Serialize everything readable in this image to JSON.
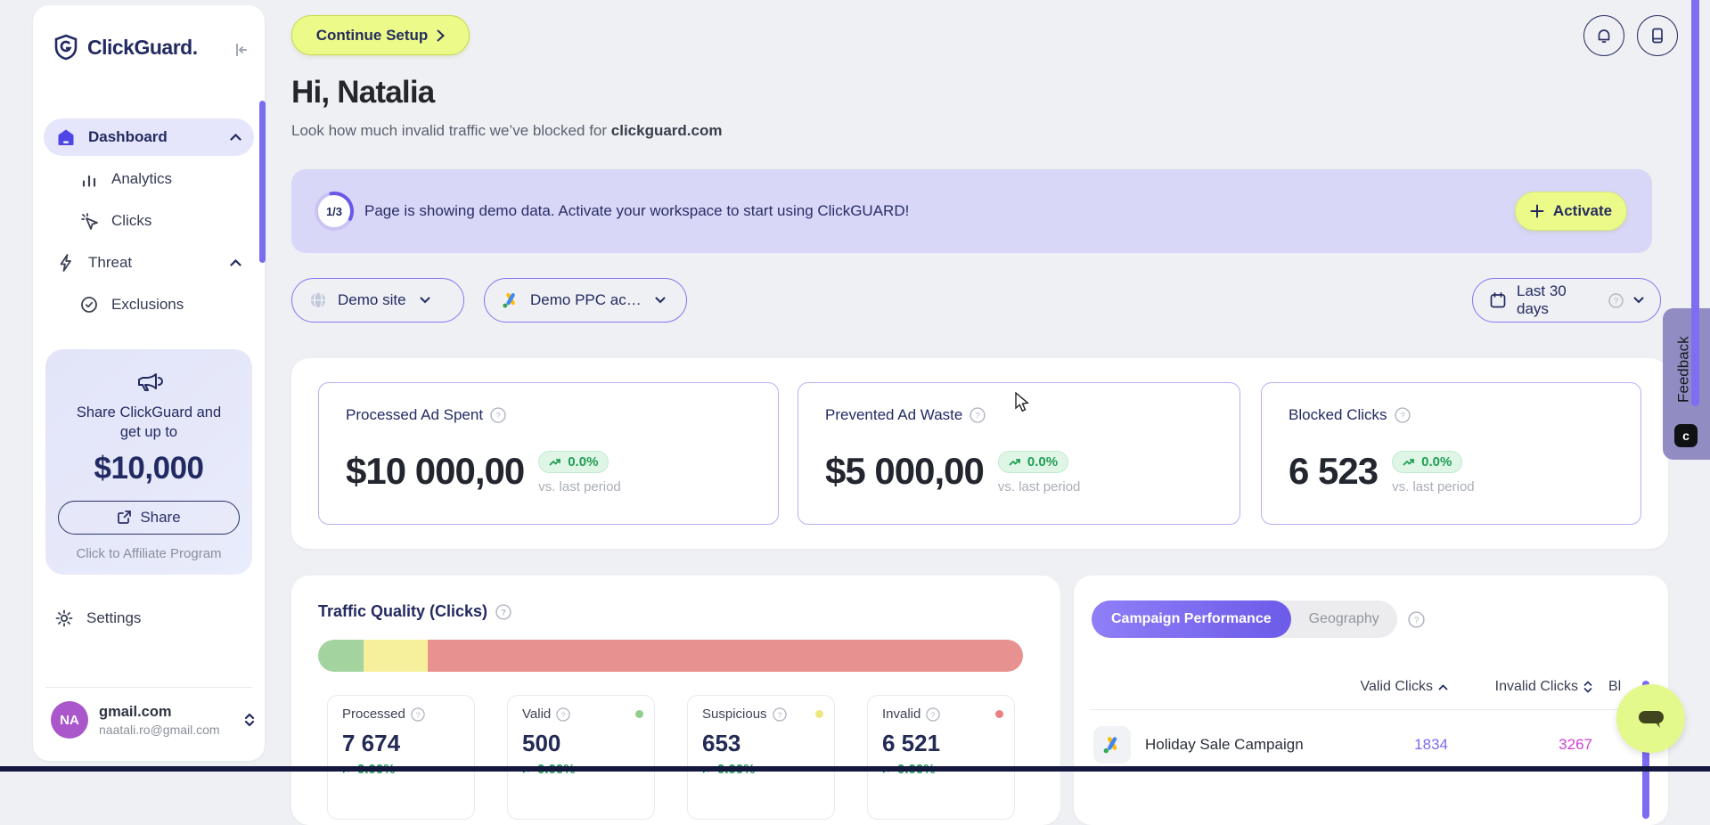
{
  "app": {
    "brand": "ClickGuard."
  },
  "sidebar": {
    "nav": [
      {
        "label": "Dashboard"
      },
      {
        "label": "Analytics"
      },
      {
        "label": "Clicks"
      },
      {
        "label": "Threat"
      },
      {
        "label": "Exclusions"
      }
    ],
    "promo": {
      "line": "Share ClickGuard and get up to",
      "amount": "$10,000",
      "share_label": "Share",
      "affiliate": "Click to Affiliate Program"
    },
    "settings_label": "Settings",
    "user": {
      "initials": "NA",
      "title": "gmail.com",
      "email": "naatali.ro@gmail.com"
    }
  },
  "header": {
    "continue_setup": "Continue Setup",
    "greeting": "Hi, Natalia",
    "subtitle_prefix": "Look how much invalid traffic we’ve blocked for ",
    "subtitle_domain": "clickguard.com"
  },
  "banner": {
    "progress": "1/3",
    "message": "Page is showing demo data. Activate your workspace to start using ClickGUARD!",
    "activate_label": "Activate"
  },
  "filters": {
    "site": "Demo site",
    "ppc_account": "Demo PPC ac…",
    "date_range": "Last 30 days"
  },
  "stats": [
    {
      "label": "Processed Ad Spent",
      "value": "$10 000,00",
      "delta": "0.0%",
      "period": "vs. last period"
    },
    {
      "label": "Prevented Ad Waste",
      "value": "$5 000,00",
      "delta": "0.0%",
      "period": "vs. last period"
    },
    {
      "label": "Blocked Clicks",
      "value": "6 523",
      "delta": "0.0%",
      "period": "vs. last period"
    }
  ],
  "traffic": {
    "title": "Traffic Quality (Clicks)",
    "segments": [
      {
        "name": "valid",
        "pct": 6.5,
        "color": "#a3d39f"
      },
      {
        "name": "suspicious",
        "pct": 9.0,
        "color": "#f6f09c"
      },
      {
        "name": "invalid",
        "pct": 84.5,
        "color": "#e89191"
      }
    ],
    "cards": [
      {
        "label": "Processed",
        "value": "7 674",
        "delta": "0.00%",
        "dot": ""
      },
      {
        "label": "Valid",
        "value": "500",
        "delta": "0.00%",
        "dot": "#93ce8f"
      },
      {
        "label": "Suspicious",
        "value": "653",
        "delta": "0.00%",
        "dot": "#f0e67e"
      },
      {
        "label": "Invalid",
        "value": "6 521",
        "delta": "0.00%",
        "dot": "#ec8080"
      }
    ]
  },
  "campaigns": {
    "tab_active": "Campaign Performance",
    "tab_inactive": "Geography",
    "col_valid": "Valid Clicks",
    "col_invalid": "Invalid Clicks",
    "col_blocked": "Bl",
    "rows": [
      {
        "name": "Holiday Sale Campaign",
        "valid": "1834",
        "invalid": "3267"
      }
    ]
  },
  "feedback_label": "Feedback",
  "colors": {
    "accent_purple": "#6c5be8",
    "lime_button": "#ecfa8a",
    "valid_number": "#7b6cee",
    "invalid_number": "#ce3fd6",
    "positive_green": "#1f9e55"
  }
}
